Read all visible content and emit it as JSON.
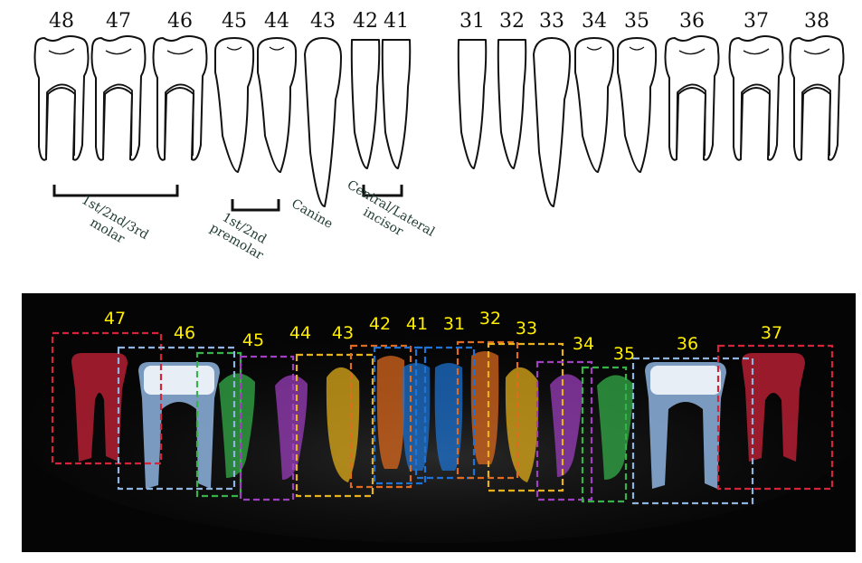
{
  "schematic": {
    "teeth_right": [
      {
        "number": "48",
        "type": "molar"
      },
      {
        "number": "47",
        "type": "molar"
      },
      {
        "number": "46",
        "type": "molar"
      },
      {
        "number": "45",
        "type": "premolar"
      },
      {
        "number": "44",
        "type": "premolar"
      },
      {
        "number": "43",
        "type": "canine"
      },
      {
        "number": "42",
        "type": "incisor"
      },
      {
        "number": "41",
        "type": "incisor"
      }
    ],
    "teeth_left": [
      {
        "number": "31",
        "type": "incisor"
      },
      {
        "number": "32",
        "type": "incisor"
      },
      {
        "number": "33",
        "type": "canine"
      },
      {
        "number": "34",
        "type": "premolar"
      },
      {
        "number": "35",
        "type": "premolar"
      },
      {
        "number": "36",
        "type": "molar"
      },
      {
        "number": "37",
        "type": "molar"
      },
      {
        "number": "38",
        "type": "molar"
      }
    ],
    "group_labels": {
      "molar": [
        "1st/2nd/3rd",
        "molar"
      ],
      "premolar": [
        "1st/2nd",
        "premolar"
      ],
      "canine": [
        "Canine"
      ],
      "incisor": [
        "Central/Lateral",
        "incisor"
      ]
    },
    "label_color": "#1e3a2f"
  },
  "xray": {
    "background": "#050505",
    "label_color": "#ffee00",
    "teeth": [
      {
        "number": "47",
        "color": "#d3243a"
      },
      {
        "number": "46",
        "color": "#8fb4df"
      },
      {
        "number": "45",
        "color": "#35b24a"
      },
      {
        "number": "44",
        "color": "#a03fbf"
      },
      {
        "number": "43",
        "color": "#e7b21c"
      },
      {
        "number": "42",
        "color": "#e06a1f"
      },
      {
        "number": "41",
        "color": "#1e74d6"
      },
      {
        "number": "31",
        "color": "#1e74d6"
      },
      {
        "number": "32",
        "color": "#e06a1f"
      },
      {
        "number": "33",
        "color": "#e7b21c"
      },
      {
        "number": "34",
        "color": "#a03fbf"
      },
      {
        "number": "35",
        "color": "#35b24a"
      },
      {
        "number": "36",
        "color": "#8fb4df"
      },
      {
        "number": "37",
        "color": "#d3243a"
      }
    ]
  }
}
